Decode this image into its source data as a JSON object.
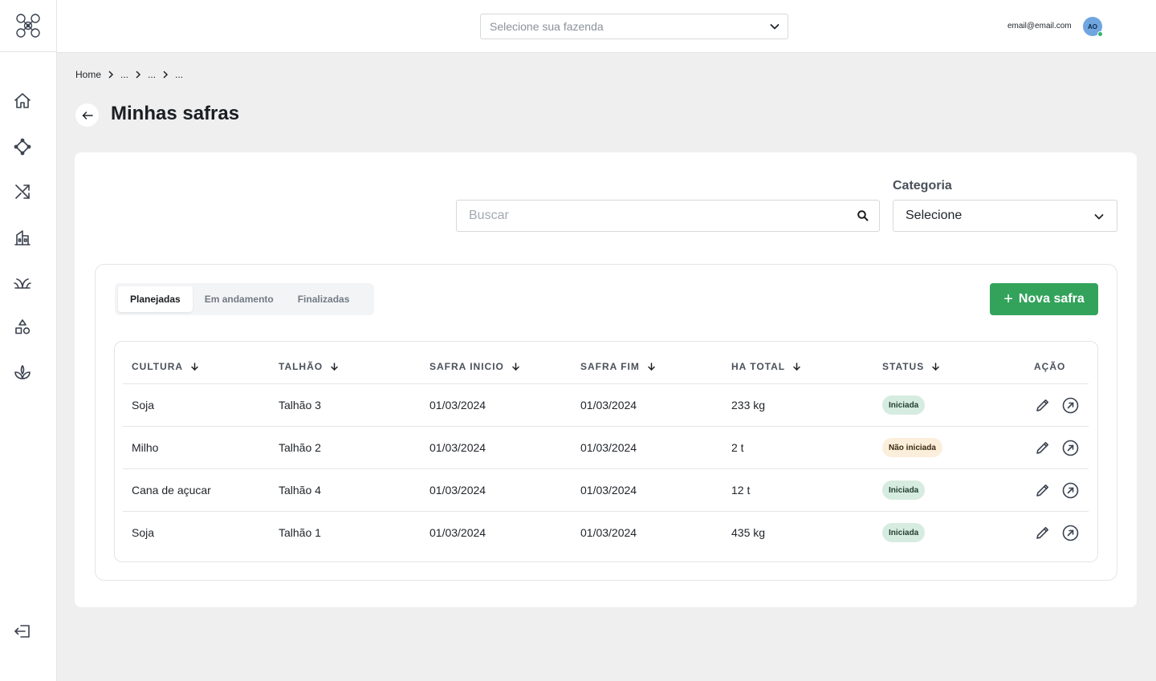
{
  "topbar": {
    "farm_placeholder": "Selecione sua fazenda",
    "user_email": "email@email.com",
    "avatar_initials": "AO"
  },
  "breadcrumb": {
    "home": "Home",
    "items": [
      "...",
      "...",
      "..."
    ]
  },
  "page": {
    "title": "Minhas safras"
  },
  "filters": {
    "search_placeholder": "Buscar",
    "category_label": "Categoria",
    "category_value": "Selecione"
  },
  "tabs": [
    {
      "label": "Planejadas",
      "active": true
    },
    {
      "label": "Em andamento",
      "active": false
    },
    {
      "label": "Finalizadas",
      "active": false
    }
  ],
  "new_button_label": "Nova safra",
  "table": {
    "headers": {
      "cultura": "CULTURA",
      "talhao": "TALHÃO",
      "inicio": "SAFRA INICIO",
      "fim": "SAFRA FIM",
      "ha": "HA TOTAL",
      "status": "STATUS",
      "acao": "AÇÃO"
    },
    "rows": [
      {
        "cultura": "Soja",
        "talhao": "Talhão 3",
        "inicio": "01/03/2024",
        "fim": "01/03/2024",
        "ha": "233 kg",
        "status": "Iniciada"
      },
      {
        "cultura": "Milho",
        "talhao": "Talhão 2",
        "inicio": "01/03/2024",
        "fim": "01/03/2024",
        "ha": "2 t",
        "status": "Não iniciada"
      },
      {
        "cultura": "Cana de açucar",
        "talhao": "Talhão 4",
        "inicio": "01/03/2024",
        "fim": "01/03/2024",
        "ha": "12 t",
        "status": "Iniciada"
      },
      {
        "cultura": "Soja",
        "talhao": "Talhão 1",
        "inicio": "01/03/2024",
        "fim": "01/03/2024",
        "ha": "435 kg",
        "status": "Iniciada"
      }
    ]
  },
  "colors": {
    "primary_green": "#33a35b",
    "badge_started_bg": "#d7ece1",
    "badge_not_started_bg": "#fbeedb",
    "avatar_bg": "#6fa6e0",
    "online_dot": "#2fb36b"
  },
  "icons": {
    "sidebar": [
      "home-icon",
      "drone-icon",
      "shuffle-icon",
      "warehouse-icon",
      "crop-icon",
      "shapes-icon",
      "plant-icon",
      "logout-icon"
    ],
    "row_actions": [
      "edit-icon",
      "open-icon"
    ]
  }
}
